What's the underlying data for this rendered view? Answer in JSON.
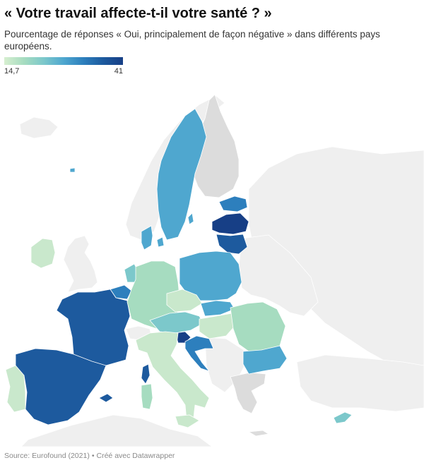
{
  "title": "« Votre travail affecte-t-il votre santé ? »",
  "subtitle": "Pourcentage de réponses « Oui, principalement de façon négative » dans différents pays européens.",
  "legend": {
    "min": "14,7",
    "max": "41"
  },
  "source": "Source: Eurofound (2021)",
  "credit": "Créé avec Datawrapper",
  "colors": {
    "nodata_dark": "#dcdcdc",
    "nodata_light": "#efefef",
    "scale": [
      "#d7efd0",
      "#a6dcc0",
      "#7cc8cb",
      "#4fa7cf",
      "#2d7fbd",
      "#1d5a9e",
      "#173f86"
    ]
  }
}
